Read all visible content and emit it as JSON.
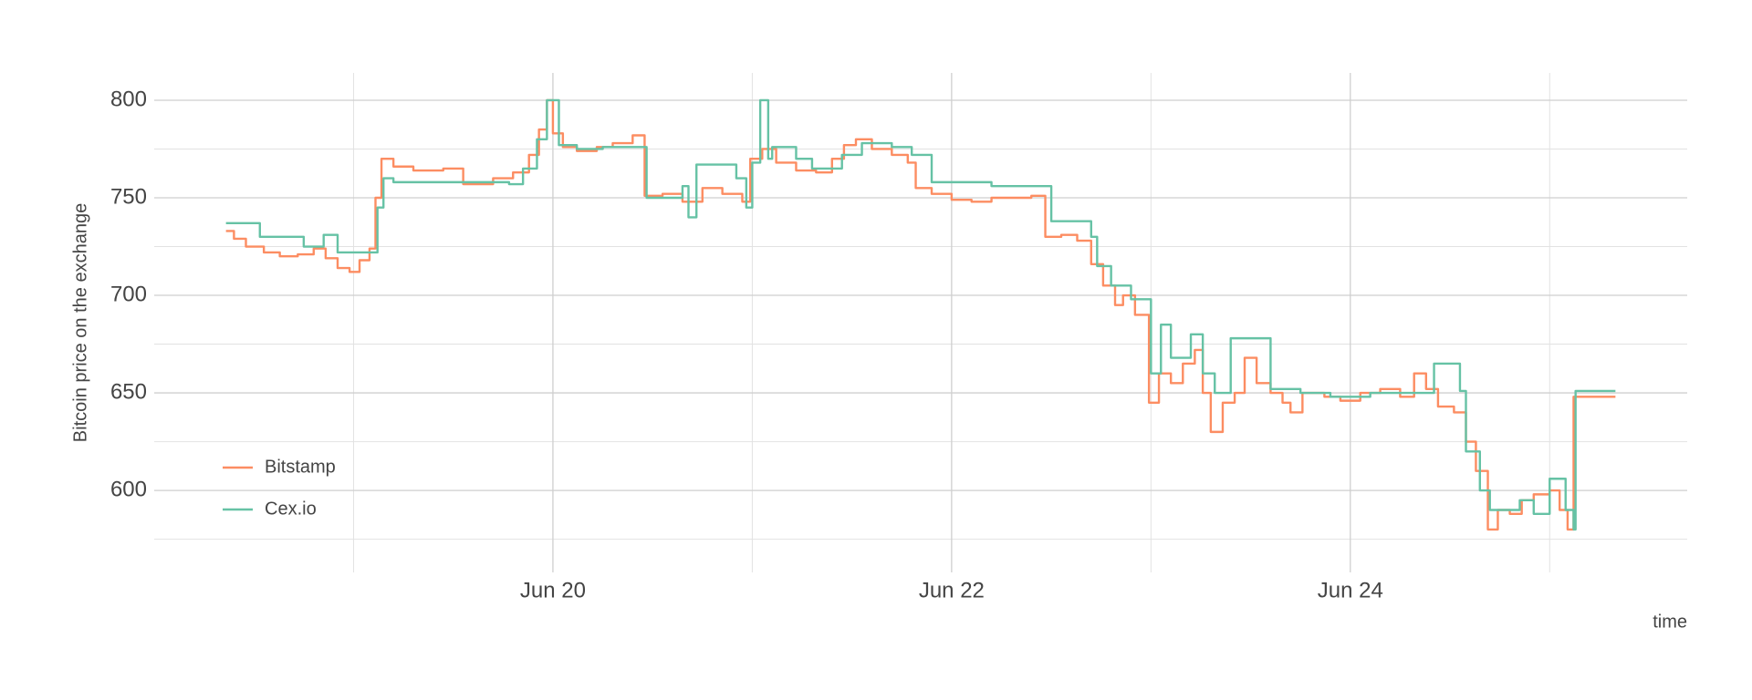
{
  "chart_data": {
    "type": "line",
    "step": "after",
    "y_label": "Bitcoin price on the exchange",
    "x_label": "time",
    "xlim": [
      18.0,
      25.69
    ],
    "ylim": [
      558,
      814
    ],
    "xticks": [
      {
        "value": 20,
        "label": "Jun 20"
      },
      {
        "value": 22,
        "label": "Jun 22"
      },
      {
        "value": 24,
        "label": "Jun 24"
      }
    ],
    "x_minor_ticks": [
      19,
      21,
      23,
      25
    ],
    "yticks": [
      600,
      650,
      700,
      750,
      800
    ],
    "y_minor_ticks": [
      575,
      625,
      675,
      725,
      775
    ],
    "grid": true,
    "legend": "bottom-left",
    "series": [
      {
        "name": "Bitstamp",
        "color": "#fc8d62",
        "x": [
          18.36,
          18.4,
          18.46,
          18.55,
          18.63,
          18.72,
          18.8,
          18.86,
          18.92,
          18.98,
          19.03,
          19.08,
          19.11,
          19.14,
          19.2,
          19.3,
          19.45,
          19.55,
          19.7,
          19.8,
          19.88,
          19.93,
          19.97,
          20.0,
          20.05,
          20.12,
          20.22,
          20.3,
          20.4,
          20.46,
          20.55,
          20.65,
          20.75,
          20.85,
          20.95,
          20.99,
          21.05,
          21.12,
          21.22,
          21.32,
          21.4,
          21.46,
          21.52,
          21.6,
          21.7,
          21.78,
          21.82,
          21.9,
          22.0,
          22.1,
          22.2,
          22.3,
          22.4,
          22.47,
          22.55,
          22.63,
          22.7,
          22.76,
          22.82,
          22.86,
          22.92,
          22.99,
          23.04,
          23.1,
          23.16,
          23.22,
          23.26,
          23.3,
          23.36,
          23.42,
          23.47,
          23.53,
          23.6,
          23.66,
          23.7,
          23.76,
          23.87,
          23.95,
          24.05,
          24.15,
          24.25,
          24.32,
          24.38,
          24.44,
          24.52,
          24.58,
          24.63,
          24.69,
          24.74,
          24.8,
          24.86,
          24.92,
          25.0,
          25.05,
          25.09,
          25.12,
          25.33
        ],
        "values": [
          733,
          729,
          725,
          722,
          720,
          721,
          724,
          719,
          714,
          712,
          718,
          724,
          750,
          770,
          766,
          764,
          765,
          757,
          760,
          763,
          772,
          785,
          800,
          783,
          776,
          774,
          776,
          778,
          782,
          751,
          752,
          748,
          755,
          752,
          748,
          770,
          775,
          768,
          764,
          763,
          770,
          777,
          780,
          775,
          772,
          768,
          755,
          752,
          749,
          748,
          750,
          750,
          751,
          730,
          731,
          728,
          716,
          705,
          695,
          700,
          690,
          645,
          660,
          655,
          665,
          672,
          650,
          630,
          645,
          650,
          668,
          655,
          650,
          645,
          640,
          650,
          648,
          646,
          650,
          652,
          648,
          660,
          652,
          643,
          640,
          625,
          610,
          580,
          590,
          588,
          595,
          598,
          600,
          590,
          580,
          648,
          648
        ]
      },
      {
        "name": "Cex.io",
        "color": "#66c2a5",
        "x": [
          18.36,
          18.53,
          18.75,
          18.85,
          18.92,
          19.12,
          19.15,
          19.2,
          19.6,
          19.78,
          19.85,
          19.92,
          19.97,
          20.03,
          20.12,
          20.25,
          20.45,
          20.47,
          20.65,
          20.68,
          20.72,
          20.92,
          20.97,
          21.0,
          21.04,
          21.08,
          21.1,
          21.22,
          21.3,
          21.45,
          21.55,
          21.7,
          21.8,
          21.9,
          22.2,
          22.5,
          22.7,
          22.73,
          22.8,
          22.9,
          23.0,
          23.05,
          23.1,
          23.2,
          23.26,
          23.32,
          23.4,
          23.6,
          23.75,
          23.9,
          24.1,
          24.3,
          24.42,
          24.55,
          24.58,
          24.65,
          24.7,
          24.85,
          24.92,
          25.0,
          25.08,
          25.12,
          25.13,
          25.33
        ],
        "values": [
          737,
          730,
          725,
          731,
          722,
          745,
          760,
          758,
          758,
          757,
          765,
          780,
          800,
          777,
          775,
          776,
          776,
          750,
          756,
          740,
          767,
          760,
          745,
          768,
          800,
          770,
          776,
          770,
          765,
          772,
          778,
          776,
          772,
          758,
          756,
          738,
          730,
          715,
          705,
          698,
          660,
          685,
          668,
          680,
          660,
          650,
          678,
          652,
          650,
          648,
          650,
          650,
          665,
          651,
          620,
          600,
          590,
          595,
          588,
          606,
          590,
          580,
          651,
          651
        ]
      }
    ]
  }
}
